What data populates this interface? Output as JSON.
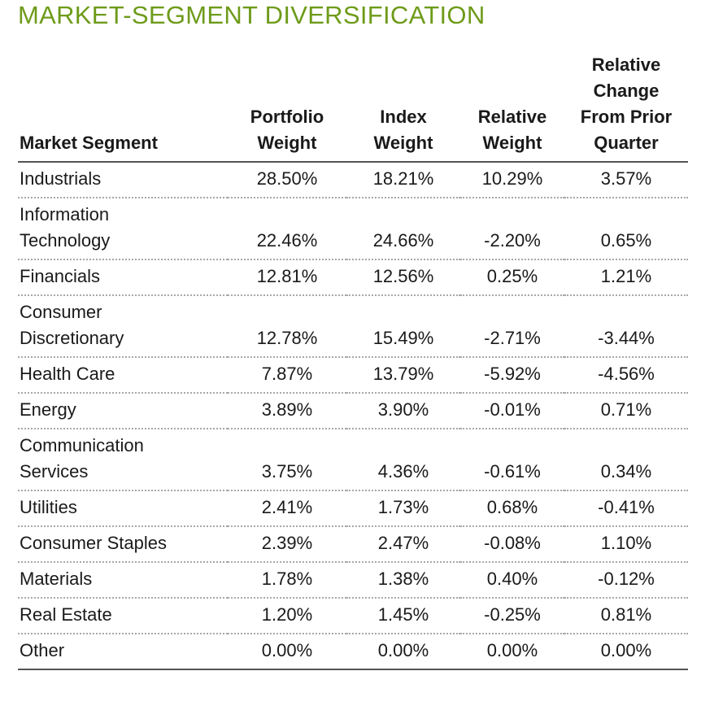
{
  "title": "MARKET-SEGMENT DIVERSIFICATION",
  "table": {
    "headers": {
      "segment": [
        "Market Segment"
      ],
      "portfolio_weight": [
        "Portfolio",
        "Weight"
      ],
      "index_weight": [
        "Index",
        "Weight"
      ],
      "relative_weight": [
        "Relative",
        "Weight"
      ],
      "relative_change": [
        "Relative",
        "Change",
        "From Prior",
        "Quarter"
      ]
    },
    "rows": [
      {
        "segment": [
          "Industrials"
        ],
        "portfolio_weight": "28.50%",
        "index_weight": "18.21%",
        "relative_weight": "10.29%",
        "relative_change": "3.57%"
      },
      {
        "segment": [
          "Information",
          "Technology"
        ],
        "portfolio_weight": "22.46%",
        "index_weight": "24.66%",
        "relative_weight": "-2.20%",
        "relative_change": "0.65%"
      },
      {
        "segment": [
          "Financials"
        ],
        "portfolio_weight": "12.81%",
        "index_weight": "12.56%",
        "relative_weight": "0.25%",
        "relative_change": "1.21%"
      },
      {
        "segment": [
          "Consumer",
          "Discretionary"
        ],
        "portfolio_weight": "12.78%",
        "index_weight": "15.49%",
        "relative_weight": "-2.71%",
        "relative_change": "-3.44%"
      },
      {
        "segment": [
          "Health Care"
        ],
        "portfolio_weight": "7.87%",
        "index_weight": "13.79%",
        "relative_weight": "-5.92%",
        "relative_change": "-4.56%"
      },
      {
        "segment": [
          "Energy"
        ],
        "portfolio_weight": "3.89%",
        "index_weight": "3.90%",
        "relative_weight": "-0.01%",
        "relative_change": "0.71%"
      },
      {
        "segment": [
          "Communication",
          "Services"
        ],
        "portfolio_weight": "3.75%",
        "index_weight": "4.36%",
        "relative_weight": "-0.61%",
        "relative_change": "0.34%"
      },
      {
        "segment": [
          "Utilities"
        ],
        "portfolio_weight": "2.41%",
        "index_weight": "1.73%",
        "relative_weight": "0.68%",
        "relative_change": "-0.41%"
      },
      {
        "segment": [
          "Consumer Staples"
        ],
        "portfolio_weight": "2.39%",
        "index_weight": "2.47%",
        "relative_weight": "-0.08%",
        "relative_change": "1.10%"
      },
      {
        "segment": [
          "Materials"
        ],
        "portfolio_weight": "1.78%",
        "index_weight": "1.38%",
        "relative_weight": "0.40%",
        "relative_change": "-0.12%"
      },
      {
        "segment": [
          "Real Estate"
        ],
        "portfolio_weight": "1.20%",
        "index_weight": "1.45%",
        "relative_weight": "-0.25%",
        "relative_change": "0.81%"
      },
      {
        "segment": [
          "Other"
        ],
        "portfolio_weight": "0.00%",
        "index_weight": "0.00%",
        "relative_weight": "0.00%",
        "relative_change": "0.00%"
      }
    ]
  },
  "colors": {
    "title": "#6e9b1a",
    "text": "#1a1a1a",
    "rule": "#555555",
    "dotted_rule": "#a8a8a8"
  }
}
